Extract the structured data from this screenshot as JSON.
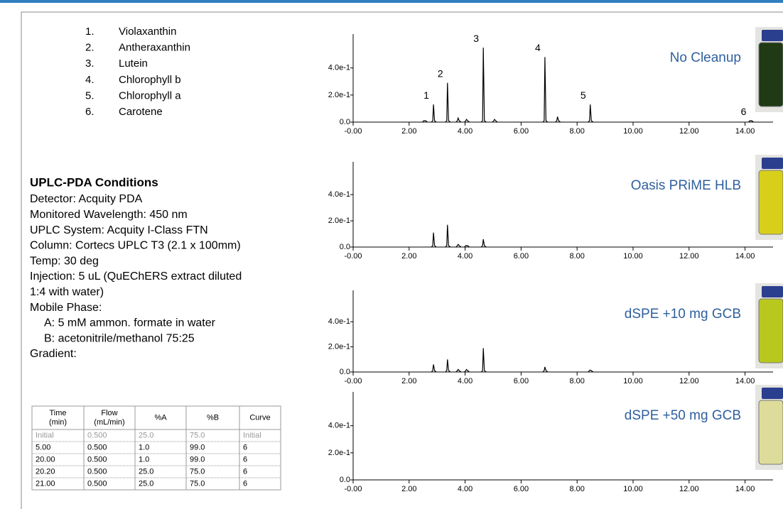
{
  "compounds": {
    "numbers": [
      "1.",
      "2.",
      "3.",
      "4.",
      "5.",
      "6."
    ],
    "names": [
      "Violaxanthin",
      "Antheraxanthin",
      "Lutein",
      "Chlorophyll b",
      "Chlorophyll a",
      "Carotene"
    ]
  },
  "conditions": {
    "title": "UPLC-PDA Conditions",
    "lines": [
      "Detector: Acquity PDA",
      "Monitored Wavelength: 450 nm",
      "UPLC System: Acquity I-Class FTN",
      "Column: Cortecs UPLC T3 (2.1 x 100mm)",
      "Temp: 30 deg",
      "Injection: 5 uL (QuEChERS extract diluted",
      "1:4 with water)",
      "Mobile Phase:",
      "A: 5 mM ammon. formate in water",
      "B: acetonitrile/methanol 75:25",
      "Gradient:"
    ]
  },
  "table": {
    "header": [
      [
        "Time",
        "(min)"
      ],
      [
        "Flow",
        "(mL/min)"
      ],
      [
        "%A"
      ],
      [
        "%B"
      ],
      [
        "Curve"
      ]
    ],
    "rows": [
      [
        "Initial",
        "0.500",
        "25.0",
        "75.0",
        "Initial"
      ],
      [
        "5.00",
        "0.500",
        "1.0",
        "99.0",
        "6"
      ],
      [
        "20.00",
        "0.500",
        "1.0",
        "99.0",
        "6"
      ],
      [
        "20.20",
        "0.500",
        "25.0",
        "75.0",
        "6"
      ],
      [
        "21.00",
        "0.500",
        "25.0",
        "75.0",
        "6"
      ]
    ]
  },
  "chart_data": [
    {
      "type": "chromatogram",
      "title": "No Cleanup",
      "color": "#000000",
      "x": [
        2.55,
        2.87,
        3.37,
        3.75,
        4.05,
        4.65,
        5.05,
        6.85,
        7.3,
        8.47,
        14.2
      ],
      "values": [
        0.01,
        0.13,
        0.29,
        0.03,
        0.02,
        0.55,
        0.02,
        0.48,
        0.04,
        0.13,
        0.01
      ],
      "labels": [
        null,
        "1",
        "2",
        null,
        null,
        "3",
        null,
        "4",
        null,
        "5",
        "6"
      ],
      "xlim": [
        0,
        15
      ],
      "xticks": [
        {
          "value": 0,
          "label": "-0.00"
        },
        {
          "value": 2,
          "label": "2.00"
        },
        {
          "value": 4,
          "label": "4.00"
        },
        {
          "value": 6,
          "label": "6.00"
        },
        {
          "value": 8,
          "label": "8.00"
        },
        {
          "value": 10,
          "label": "10.00"
        },
        {
          "value": 12,
          "label": "12.00"
        },
        {
          "value": 14,
          "label": "14.00"
        }
      ],
      "ylim": [
        0,
        0.65
      ],
      "yticks": [
        {
          "value": 0,
          "label": "0.0"
        },
        {
          "value": 0.2,
          "label": "2.0e-1"
        },
        {
          "value": 0.4,
          "label": "4.0e-1"
        }
      ]
    },
    {
      "type": "chromatogram",
      "title": "Oasis PRiME HLB",
      "color": "#000000",
      "x": [
        2.87,
        3.37,
        3.75,
        4.05,
        4.65
      ],
      "values": [
        0.11,
        0.17,
        0.02,
        0.01,
        0.06
      ],
      "xlim": [
        0,
        15
      ],
      "xticks": [
        {
          "value": 0,
          "label": "-0.00"
        },
        {
          "value": 2,
          "label": "2.00"
        },
        {
          "value": 4,
          "label": "4.00"
        },
        {
          "value": 6,
          "label": "6.00"
        },
        {
          "value": 8,
          "label": "8.00"
        },
        {
          "value": 10,
          "label": "10.00"
        },
        {
          "value": 12,
          "label": "12.00"
        },
        {
          "value": 14,
          "label": "14.00"
        }
      ],
      "ylim": [
        0,
        0.65
      ],
      "yticks": [
        {
          "value": 0,
          "label": "0.0"
        },
        {
          "value": 0.2,
          "label": "2.0e-1"
        },
        {
          "value": 0.4,
          "label": "4.0e-1"
        }
      ]
    },
    {
      "type": "chromatogram",
      "title": "dSPE +10 mg GCB",
      "color": "#000000",
      "x": [
        2.87,
        3.37,
        3.75,
        4.05,
        4.65,
        6.85,
        8.47
      ],
      "values": [
        0.06,
        0.1,
        0.02,
        0.02,
        0.19,
        0.04,
        0.015
      ],
      "xlim": [
        0,
        15
      ],
      "xticks": [
        {
          "value": 0,
          "label": "-0.00"
        },
        {
          "value": 2,
          "label": "2.00"
        },
        {
          "value": 4,
          "label": "4.00"
        },
        {
          "value": 6,
          "label": "6.00"
        },
        {
          "value": 8,
          "label": "8.00"
        },
        {
          "value": 10,
          "label": "10.00"
        },
        {
          "value": 12,
          "label": "12.00"
        },
        {
          "value": 14,
          "label": "14.00"
        }
      ],
      "ylim": [
        0,
        0.65
      ],
      "yticks": [
        {
          "value": 0,
          "label": "0.0"
        },
        {
          "value": 0.2,
          "label": "2.0e-1"
        },
        {
          "value": 0.4,
          "label": "4.0e-1"
        }
      ]
    },
    {
      "type": "chromatogram",
      "title": "dSPE +50 mg GCB",
      "color": "#000000",
      "x": [],
      "values": [],
      "xlim": [
        0,
        15
      ],
      "xticks": [
        {
          "value": 0,
          "label": "-0.00"
        },
        {
          "value": 2,
          "label": "2.00"
        },
        {
          "value": 4,
          "label": "4.00"
        },
        {
          "value": 6,
          "label": "6.00"
        },
        {
          "value": 8,
          "label": "8.00"
        },
        {
          "value": 10,
          "label": "10.00"
        },
        {
          "value": 12,
          "label": "12.00"
        },
        {
          "value": 14,
          "label": "14.00"
        }
      ],
      "ylim": [
        0,
        0.65
      ],
      "yticks": [
        {
          "value": 0,
          "label": "0.0"
        },
        {
          "value": 0.2,
          "label": "2.0e-1"
        },
        {
          "value": 0.4,
          "label": "4.0e-1"
        }
      ]
    }
  ]
}
